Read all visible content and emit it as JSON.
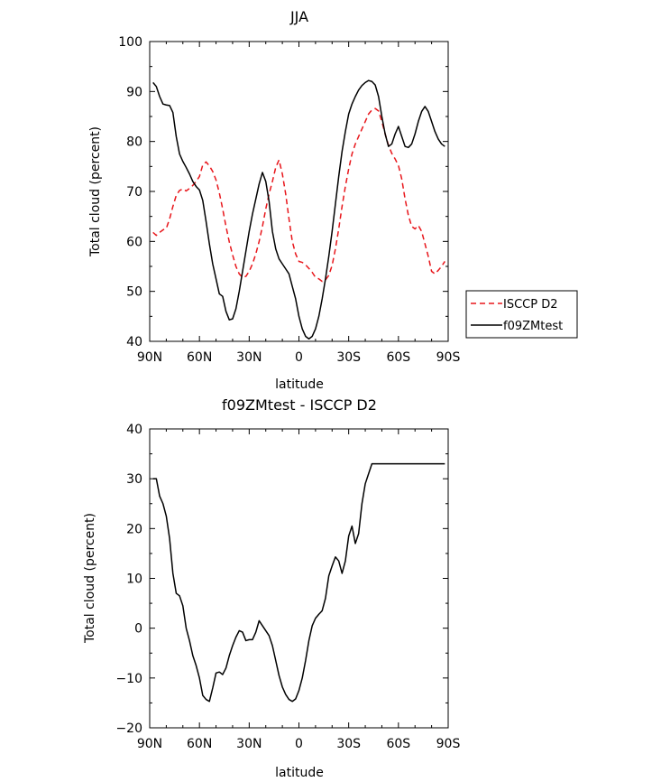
{
  "chart_data": [
    {
      "type": "line",
      "title": "JJA",
      "xlabel": "latitude",
      "ylabel": "Total cloud (percent)",
      "xlim": [
        -90,
        90
      ],
      "ylim": [
        40,
        100
      ],
      "x_ticks": [
        -90,
        -60,
        -30,
        0,
        30,
        60,
        90
      ],
      "x_tick_labels": [
        "90N",
        "60N",
        "30N",
        "0",
        "30S",
        "60S",
        "90S"
      ],
      "y_ticks": [
        40,
        50,
        60,
        70,
        80,
        90,
        100
      ],
      "y_tick_labels": [
        "40",
        "50",
        "60",
        "70",
        "80",
        "90",
        "100"
      ],
      "legend_position": "outside-right",
      "series": [
        {
          "name": "ISCCP D2",
          "color": "#e8161b",
          "dash": "dashed",
          "x": [
            -88,
            -86,
            -84,
            -82,
            -80,
            -78,
            -76,
            -74,
            -72,
            -70,
            -68,
            -66,
            -64,
            -62,
            -60,
            -58,
            -56,
            -54,
            -52,
            -50,
            -48,
            -46,
            -44,
            -42,
            -40,
            -38,
            -36,
            -34,
            -32,
            -30,
            -28,
            -26,
            -24,
            -22,
            -20,
            -18,
            -16,
            -14,
            -12,
            -10,
            -8,
            -6,
            -4,
            -2,
            0,
            2,
            4,
            6,
            8,
            10,
            12,
            14,
            16,
            18,
            20,
            22,
            24,
            26,
            28,
            30,
            32,
            34,
            36,
            38,
            40,
            42,
            44,
            46,
            48,
            50,
            52,
            54,
            56,
            58,
            60,
            62,
            64,
            66,
            68,
            70,
            72,
            74,
            76,
            78,
            80,
            82,
            84,
            86,
            88
          ],
          "y": [
            61.8,
            61.2,
            61.8,
            62.3,
            62.6,
            64.5,
            67.0,
            69.2,
            70.2,
            70.5,
            70.1,
            70.6,
            71.2,
            72.0,
            73.0,
            75.3,
            75.9,
            75.1,
            74.0,
            72.3,
            69.7,
            66.5,
            63.0,
            59.9,
            57.3,
            55.0,
            53.5,
            52.8,
            53.0,
            54.0,
            55.5,
            57.5,
            60.0,
            63.0,
            66.5,
            69.5,
            72.0,
            74.8,
            76.3,
            73.5,
            69.5,
            64.5,
            60.0,
            57.5,
            56.0,
            55.8,
            55.3,
            54.6,
            53.8,
            52.8,
            52.5,
            52.0,
            52.3,
            53.2,
            55.2,
            58.5,
            62.5,
            67.0,
            71.0,
            74.5,
            77.5,
            79.5,
            81.0,
            82.5,
            84.0,
            85.5,
            86.3,
            86.6,
            86.1,
            84.0,
            81.5,
            79.2,
            77.6,
            76.5,
            75.2,
            72.5,
            68.5,
            65.2,
            63.0,
            62.5,
            63.2,
            62.0,
            59.5,
            57.0,
            54.0,
            53.5,
            54.2,
            55.0,
            56.0
          ]
        },
        {
          "name": "f09ZMtest",
          "color": "#000000",
          "dash": "solid",
          "x": [
            -88,
            -86,
            -84,
            -82,
            -80,
            -78,
            -76,
            -74,
            -72,
            -70,
            -68,
            -66,
            -64,
            -62,
            -60,
            -58,
            -56,
            -54,
            -52,
            -50,
            -48,
            -46,
            -44,
            -42,
            -40,
            -38,
            -36,
            -34,
            -32,
            -30,
            -28,
            -26,
            -24,
            -22,
            -20,
            -18,
            -16,
            -14,
            -12,
            -10,
            -8,
            -6,
            -4,
            -2,
            0,
            2,
            4,
            6,
            8,
            10,
            12,
            14,
            16,
            18,
            20,
            22,
            24,
            26,
            28,
            30,
            32,
            34,
            36,
            38,
            40,
            42,
            44,
            46,
            48,
            50,
            52,
            54,
            56,
            58,
            60,
            62,
            64,
            66,
            68,
            70,
            72,
            74,
            76,
            78,
            80,
            82,
            84,
            86,
            88
          ],
          "y": [
            91.8,
            91.0,
            89.0,
            87.5,
            87.3,
            87.2,
            85.8,
            81.0,
            77.5,
            76.0,
            74.8,
            73.5,
            72.0,
            71.0,
            70.3,
            68.2,
            64.0,
            59.5,
            55.5,
            52.5,
            49.5,
            49.0,
            46.0,
            44.3,
            44.5,
            46.5,
            50.0,
            54.0,
            58.0,
            62.0,
            65.5,
            68.5,
            71.5,
            73.8,
            72.0,
            68.0,
            62.0,
            58.5,
            56.5,
            55.5,
            54.5,
            53.5,
            51.0,
            48.5,
            45.0,
            42.5,
            41.0,
            40.5,
            41.0,
            42.5,
            45.0,
            48.5,
            52.5,
            57.0,
            62.0,
            67.5,
            73.0,
            78.0,
            82.0,
            85.5,
            87.5,
            89.0,
            90.3,
            91.2,
            91.8,
            92.2,
            92.0,
            91.3,
            89.0,
            85.0,
            81.5,
            79.0,
            79.5,
            81.5,
            83.0,
            81.0,
            79.0,
            78.8,
            79.5,
            81.5,
            84.0,
            86.0,
            87.0,
            86.0,
            84.0,
            82.0,
            80.5,
            79.5,
            79.0
          ]
        }
      ]
    },
    {
      "type": "line",
      "title": "f09ZMtest - ISCCP D2",
      "xlabel": "latitude",
      "ylabel": "Total cloud (percent)",
      "xlim": [
        -90,
        90
      ],
      "ylim": [
        -20,
        40
      ],
      "x_ticks": [
        -90,
        -60,
        -30,
        0,
        30,
        60,
        90
      ],
      "x_tick_labels": [
        "90N",
        "60N",
        "30N",
        "0",
        "30S",
        "60S",
        "90S"
      ],
      "y_ticks": [
        -20,
        -10,
        0,
        10,
        20,
        30,
        40
      ],
      "y_tick_labels": [
        "−20",
        "−10",
        "0",
        "10",
        "20",
        "30",
        "40"
      ],
      "series": [
        {
          "color": "#000000",
          "dash": "solid",
          "x": [
            -88,
            -86,
            -84,
            -82,
            -80,
            -78,
            -76,
            -74,
            -72,
            -70,
            -68,
            -66,
            -64,
            -62,
            -60,
            -58,
            -56,
            -54,
            -52,
            -50,
            -48,
            -46,
            -44,
            -42,
            -40,
            -38,
            -36,
            -34,
            -32,
            -30,
            -28,
            -26,
            -24,
            -22,
            -20,
            -18,
            -16,
            -14,
            -12,
            -10,
            -8,
            -6,
            -4,
            -2,
            0,
            2,
            4,
            6,
            8,
            10,
            12,
            14,
            16,
            18,
            20,
            22,
            24,
            26,
            28,
            30,
            32,
            34,
            36,
            38,
            40,
            42,
            44,
            46,
            48,
            50,
            52,
            54,
            56,
            58,
            60,
            62,
            64,
            66,
            68,
            70,
            72,
            74,
            76,
            78,
            80,
            82,
            84,
            86,
            88
          ],
          "y": [
            30.0,
            30.0,
            26.5,
            25.0,
            22.5,
            18.0,
            11.0,
            7.0,
            6.5,
            4.5,
            0.0,
            -2.5,
            -5.5,
            -7.5,
            -10.0,
            -13.5,
            -14.3,
            -14.7,
            -12.0,
            -9.0,
            -8.8,
            -9.3,
            -8.0,
            -5.5,
            -3.5,
            -1.8,
            -0.5,
            -0.8,
            -2.5,
            -2.3,
            -2.3,
            -0.8,
            1.5,
            0.5,
            -0.5,
            -1.5,
            -3.5,
            -6.5,
            -9.5,
            -11.8,
            -13.3,
            -14.3,
            -14.7,
            -14.2,
            -12.5,
            -10.0,
            -6.5,
            -2.5,
            0.5,
            2.0,
            2.8,
            3.5,
            6.0,
            10.5,
            12.5,
            14.3,
            13.5,
            11.0,
            13.5,
            18.5,
            20.5,
            17.0,
            19.0,
            25.0,
            29.0,
            31.0,
            33.0,
            33.0,
            33.0,
            33.0,
            33.0,
            33.0,
            33.0,
            33.0,
            33.0,
            33.0,
            33.0,
            33.0,
            33.0,
            33.0,
            33.0,
            33.0,
            33.0,
            33.0,
            33.0,
            33.0,
            33.0,
            33.0,
            33.0
          ]
        }
      ]
    }
  ]
}
